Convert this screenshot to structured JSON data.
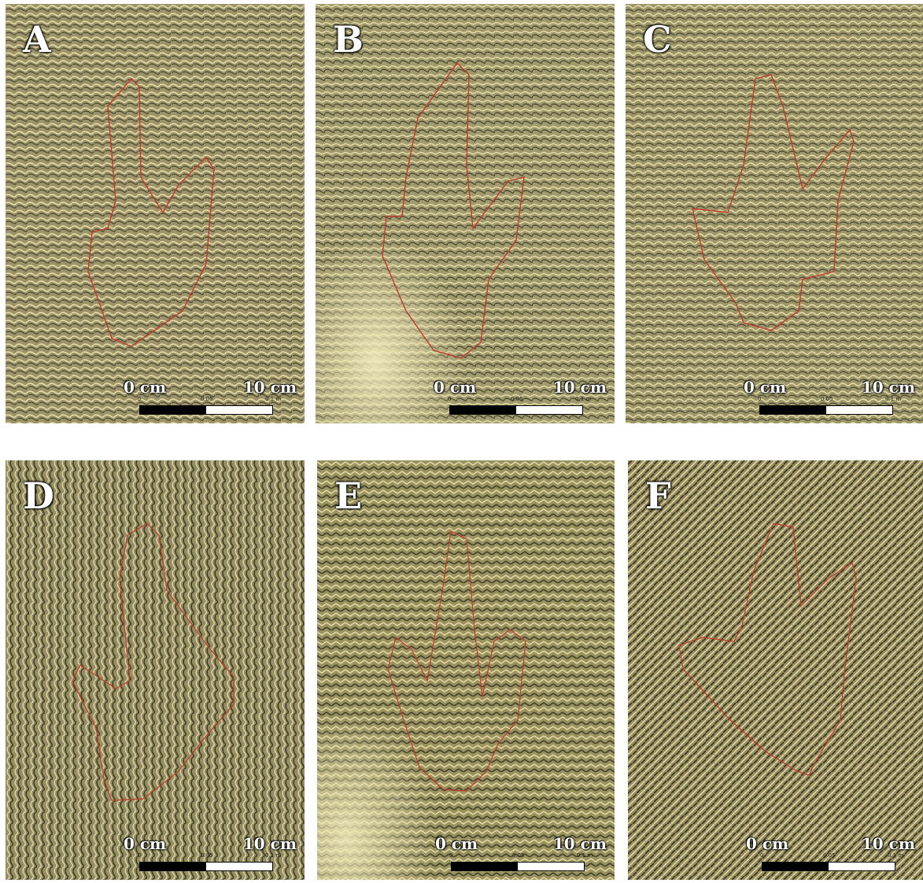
{
  "panels": [
    {
      "letter": "A",
      "scale_start": "0 cm",
      "scale_end": "10 cm",
      "tick_start": "0",
      "tick_mid": "0.05",
      "tick_end": "0.1 m"
    },
    {
      "letter": "B",
      "scale_start": "0 cm",
      "scale_end": "10 cm",
      "tick_start": "0",
      "tick_mid": "0.05",
      "tick_end": "0.1 m"
    },
    {
      "letter": "C",
      "scale_start": "0 cm",
      "scale_end": "10 cm",
      "tick_start": "0",
      "tick_mid": "0.05",
      "tick_end": "0.1 m"
    },
    {
      "letter": "D",
      "scale_start": "0 cm",
      "scale_end": "10 cm",
      "tick_start": "0",
      "tick_mid": "0.05",
      "tick_end": "0.1 m"
    },
    {
      "letter": "E",
      "scale_start": "0 cm",
      "scale_end": "10 cm",
      "tick_start": "0",
      "tick_mid": "0.05",
      "tick_end": "0.1 m"
    },
    {
      "letter": "F",
      "scale_start": "0 cm",
      "scale_end": "10 cm",
      "tick_start": "0",
      "tick_mid": "0.05",
      "tick_end": "0.1 m"
    }
  ],
  "colors": {
    "surface": "#9c9468",
    "highlight": "#e6dca8",
    "shadow": "#2a2a22",
    "outline": "#c0392b"
  }
}
